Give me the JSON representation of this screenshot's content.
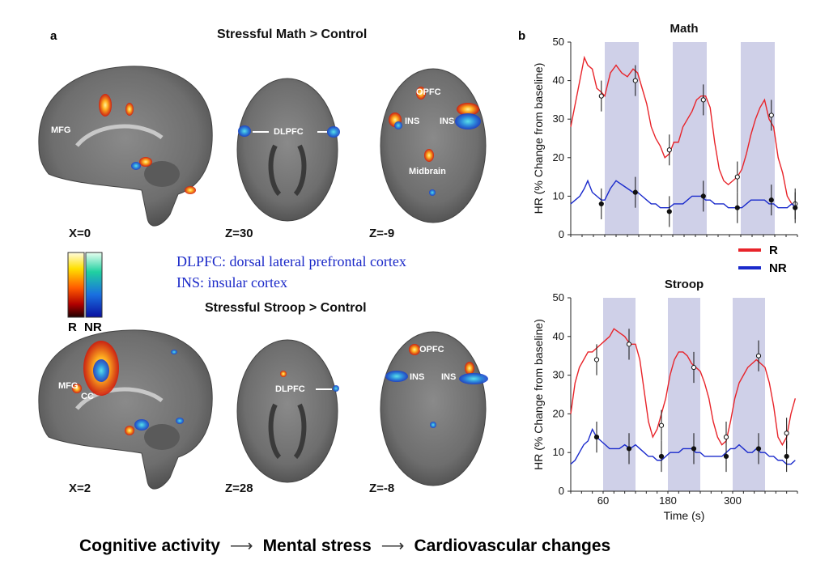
{
  "panel_a": {
    "letter": "a",
    "math_title": "Stressful Math > Control",
    "stroop_title": "Stressful Stroop > Control",
    "math_coords": [
      "X=0",
      "Z=30",
      "Z=-9"
    ],
    "stroop_coords": [
      "X=2",
      "Z=28",
      "Z=-8"
    ],
    "labels": {
      "mfg": "MFG",
      "dlpfc": "DLPFC",
      "opfc": "OPFC",
      "ins": "INS",
      "midbrain": "Midbrain",
      "cc": "CC"
    },
    "definitions": [
      "DLPFC: dorsal lateral prefrontal cortex",
      "INS: insular cortex"
    ],
    "colorbar": {
      "r": "R",
      "nr": "NR"
    }
  },
  "panel_b": {
    "letter": "b"
  },
  "legend": {
    "r": "R",
    "nr": "NR",
    "r_color": "#e8242a",
    "nr_color": "#1a2acc"
  },
  "chart_data": [
    {
      "type": "line",
      "title": "Math",
      "ylabel": "HR (% Change from baseline)",
      "xlabel": "",
      "xlim": [
        0,
        400
      ],
      "ylim": [
        0,
        50
      ],
      "xticks": [],
      "yticks": [
        0,
        10,
        20,
        30,
        40,
        50
      ],
      "shaded_blocks": [
        [
          60,
          120
        ],
        [
          180,
          240
        ],
        [
          300,
          360
        ]
      ],
      "series": [
        {
          "name": "R",
          "color": "#e8242a",
          "x": [
            0,
            8,
            16,
            24,
            30,
            38,
            46,
            54,
            60,
            70,
            80,
            90,
            100,
            110,
            118,
            126,
            134,
            142,
            150,
            158,
            166,
            174,
            182,
            190,
            198,
            206,
            214,
            222,
            230,
            238,
            246,
            254,
            262,
            270,
            278,
            286,
            294,
            302,
            310,
            318,
            326,
            334,
            342,
            350,
            358,
            366,
            374,
            382,
            390,
            398
          ],
          "y": [
            28,
            34,
            40,
            46,
            44,
            43,
            38,
            37,
            36,
            42,
            44,
            42,
            41,
            43,
            42,
            38,
            34,
            28,
            25,
            23,
            20,
            21,
            24,
            24,
            28,
            30,
            32,
            35,
            36,
            36,
            33,
            24,
            17,
            14,
            13,
            14,
            15,
            17,
            21,
            26,
            30,
            33,
            35,
            30,
            28,
            20,
            16,
            10,
            8,
            7
          ],
          "markers": [
            [
              54,
              36
            ],
            [
              114,
              40
            ],
            [
              174,
              22
            ],
            [
              234,
              35
            ],
            [
              294,
              15
            ],
            [
              354,
              31
            ],
            [
              396,
              8
            ]
          ]
        },
        {
          "name": "NR",
          "color": "#1a2acc",
          "x": [
            0,
            8,
            16,
            24,
            30,
            38,
            46,
            54,
            60,
            70,
            80,
            90,
            100,
            110,
            118,
            126,
            134,
            142,
            150,
            158,
            166,
            174,
            182,
            190,
            198,
            206,
            214,
            222,
            230,
            238,
            246,
            254,
            262,
            270,
            278,
            286,
            294,
            302,
            310,
            318,
            326,
            334,
            342,
            350,
            358,
            366,
            374,
            382,
            390,
            398
          ],
          "y": [
            8,
            9,
            10,
            12,
            14,
            11,
            10,
            9,
            9,
            12,
            14,
            13,
            12,
            11,
            11,
            10,
            9,
            8,
            8,
            7,
            7,
            7,
            8,
            8,
            8,
            9,
            10,
            10,
            10,
            9,
            9,
            8,
            8,
            8,
            7,
            7,
            7,
            7,
            8,
            9,
            9,
            9,
            9,
            8,
            8,
            7,
            7,
            7,
            8,
            7
          ],
          "markers": [
            [
              54,
              8
            ],
            [
              114,
              11
            ],
            [
              174,
              6
            ],
            [
              234,
              10
            ],
            [
              294,
              7
            ],
            [
              354,
              9
            ],
            [
              396,
              7
            ]
          ]
        }
      ]
    },
    {
      "type": "line",
      "title": "Stroop",
      "ylabel": "HR (% Change from baseline)",
      "xlabel": "Time (s)",
      "xlim": [
        0,
        420
      ],
      "ylim": [
        0,
        50
      ],
      "xticks": [
        60,
        180,
        300
      ],
      "yticks": [
        0,
        10,
        20,
        30,
        40,
        50
      ],
      "shaded_blocks": [
        [
          60,
          120
        ],
        [
          180,
          240
        ],
        [
          300,
          360
        ]
      ],
      "series": [
        {
          "name": "R",
          "color": "#e8242a",
          "x": [
            0,
            8,
            16,
            24,
            32,
            40,
            48,
            56,
            64,
            72,
            80,
            90,
            100,
            110,
            120,
            128,
            136,
            144,
            152,
            160,
            168,
            176,
            184,
            192,
            200,
            208,
            216,
            224,
            232,
            240,
            248,
            256,
            264,
            272,
            280,
            288,
            296,
            304,
            312,
            320,
            328,
            336,
            344,
            352,
            360,
            368,
            376,
            384,
            392,
            400,
            408,
            416
          ],
          "y": [
            20,
            28,
            32,
            34,
            36,
            36,
            37,
            38,
            39,
            40,
            42,
            41,
            40,
            38,
            38,
            34,
            26,
            18,
            14,
            16,
            20,
            24,
            30,
            34,
            36,
            36,
            35,
            33,
            32,
            31,
            28,
            24,
            18,
            14,
            12,
            13,
            18,
            24,
            28,
            30,
            32,
            33,
            34,
            33,
            32,
            28,
            22,
            14,
            12,
            14,
            20,
            24
          ],
          "markers": [
            [
              48,
              34
            ],
            [
              108,
              38
            ],
            [
              168,
              17
            ],
            [
              228,
              32
            ],
            [
              288,
              14
            ],
            [
              348,
              35
            ],
            [
              400,
              15
            ]
          ]
        },
        {
          "name": "NR",
          "color": "#1a2acc",
          "x": [
            0,
            8,
            16,
            24,
            32,
            40,
            48,
            56,
            64,
            72,
            80,
            90,
            100,
            110,
            120,
            128,
            136,
            144,
            152,
            160,
            168,
            176,
            184,
            192,
            200,
            208,
            216,
            224,
            232,
            240,
            248,
            256,
            264,
            272,
            280,
            288,
            296,
            304,
            312,
            320,
            328,
            336,
            344,
            352,
            360,
            368,
            376,
            384,
            392,
            400,
            408,
            416
          ],
          "y": [
            7,
            8,
            10,
            12,
            13,
            16,
            14,
            13,
            12,
            11,
            11,
            11,
            12,
            11,
            12,
            11,
            10,
            9,
            9,
            8,
            8,
            9,
            10,
            10,
            10,
            11,
            11,
            11,
            10,
            10,
            9,
            9,
            9,
            9,
            9,
            10,
            11,
            11,
            12,
            11,
            10,
            10,
            11,
            10,
            10,
            9,
            9,
            8,
            8,
            7,
            7,
            8
          ],
          "markers": [
            [
              48,
              14
            ],
            [
              108,
              11
            ],
            [
              168,
              9
            ],
            [
              228,
              11
            ],
            [
              288,
              9
            ],
            [
              348,
              11
            ],
            [
              400,
              9
            ]
          ]
        }
      ]
    }
  ],
  "bottom_flow": {
    "step1": "Cognitive activity",
    "step2": "Mental stress",
    "step3": "Cardiovascular changes"
  }
}
